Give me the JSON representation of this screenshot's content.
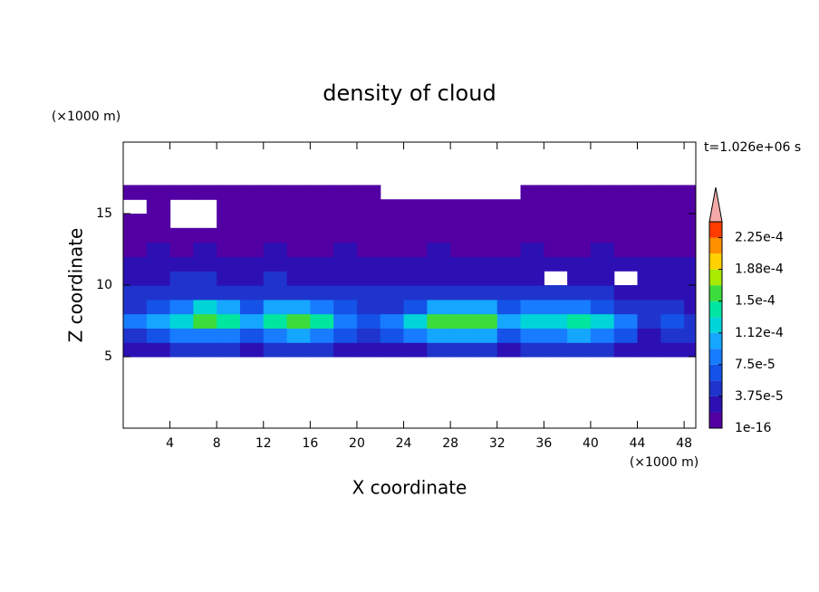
{
  "chart_data": {
    "type": "contour",
    "title": "density of cloud",
    "x_label": "X coordinate",
    "y_label": "Z coordinate",
    "x_unit": "(×1000 m)",
    "y_unit": "(×1000 m)",
    "annotation": "t=1.026e+06 s",
    "xlim": [
      0,
      49
    ],
    "ylim": [
      0,
      20
    ],
    "xticks": [
      4,
      8,
      12,
      16,
      20,
      24,
      28,
      32,
      36,
      40,
      44,
      48
    ],
    "yticks": [
      5,
      10,
      15
    ],
    "x": [
      1,
      3,
      5,
      7,
      9,
      11,
      13,
      15,
      17,
      19,
      21,
      23,
      25,
      27,
      29,
      31,
      33,
      35,
      37,
      39,
      41,
      43,
      45,
      47,
      49
    ],
    "y": [
      5.5,
      6.5,
      7.5,
      8.5,
      9.5,
      10.5,
      11.5,
      12.5,
      13.5,
      14.5,
      15.5,
      16.5
    ],
    "values": [
      [
        2e-05,
        3e-05,
        4e-05,
        4e-05,
        4e-05,
        3e-05,
        4e-05,
        4e-05,
        4e-05,
        3e-05,
        2e-05,
        3e-05,
        3e-05,
        4e-05,
        4e-05,
        4e-05,
        3e-05,
        4e-05,
        4e-05,
        4e-05,
        4e-05,
        3e-05,
        2e-05,
        3e-05,
        2e-05
      ],
      [
        5e-05,
        6e-05,
        8e-05,
        9e-05,
        9e-05,
        7e-05,
        9e-05,
        0.0001,
        9e-05,
        6e-05,
        5e-05,
        6e-05,
        8e-05,
        0.0001,
        0.0001,
        0.0001,
        7e-05,
        9e-05,
        9e-05,
        0.0001,
        9e-05,
        6e-05,
        3e-05,
        5e-05,
        4e-05
      ],
      [
        8e-05,
        0.0001,
        0.00013,
        0.00015,
        0.00014,
        0.0001,
        0.00014,
        0.00015,
        0.00014,
        9e-05,
        6e-05,
        8e-05,
        0.00012,
        0.00015,
        0.00016,
        0.00015,
        0.0001,
        0.00013,
        0.00013,
        0.00014,
        0.00012,
        8e-05,
        5e-05,
        6e-05,
        4e-05
      ],
      [
        5e-05,
        6e-05,
        9e-05,
        0.00012,
        0.0001,
        6e-05,
        0.0001,
        0.00011,
        9e-05,
        6e-05,
        5e-05,
        5e-05,
        7e-05,
        0.0001,
        0.00011,
        0.0001,
        6e-05,
        8e-05,
        8e-05,
        8e-05,
        6e-05,
        5e-05,
        4e-05,
        4e-05,
        3e-05
      ],
      [
        4e-05,
        4e-05,
        5e-05,
        5e-05,
        5e-05,
        4e-05,
        4e-05,
        5e-05,
        5e-05,
        4e-05,
        4e-05,
        4e-05,
        4e-05,
        4e-05,
        5e-05,
        4e-05,
        4e-05,
        4e-05,
        4e-05,
        4e-05,
        4e-05,
        3e-05,
        3e-05,
        3e-05,
        3e-05
      ],
      [
        3e-05,
        3e-05,
        4e-05,
        4e-05,
        3e-05,
        3e-05,
        4e-05,
        3e-05,
        3e-05,
        3e-05,
        3e-05,
        3e-05,
        3e-05,
        3e-05,
        3e-05,
        3e-05,
        3e-05,
        3e-05,
        0,
        2e-05,
        3e-05,
        0,
        3e-05,
        3e-05,
        3e-05
      ],
      [
        2e-05,
        2e-05,
        2e-05,
        2e-05,
        2e-05,
        2e-05,
        2e-05,
        2e-05,
        2e-05,
        2e-05,
        2e-05,
        2e-05,
        2e-05,
        2e-05,
        2e-05,
        2e-05,
        2e-05,
        2e-05,
        2e-05,
        2e-05,
        2e-05,
        2e-05,
        2e-05,
        2e-05,
        2e-05
      ],
      [
        1.5e-05,
        2e-05,
        1.5e-05,
        2e-05,
        1.5e-05,
        1.5e-05,
        2e-05,
        1.5e-05,
        1.5e-05,
        2e-05,
        1.5e-05,
        1.5e-05,
        1.5e-05,
        2e-05,
        1.5e-05,
        1.5e-05,
        1.5e-05,
        2e-05,
        1.5e-05,
        1.5e-05,
        2e-05,
        1.5e-05,
        1.5e-05,
        1.5e-05,
        1.5e-05
      ],
      [
        1e-05,
        1e-05,
        1e-05,
        1e-05,
        1e-05,
        1e-05,
        1e-05,
        1e-05,
        1e-05,
        1e-05,
        1e-05,
        1e-05,
        1e-05,
        1e-05,
        1e-05,
        1e-05,
        1e-05,
        1e-05,
        1e-05,
        1e-05,
        1e-05,
        1e-05,
        1e-05,
        1e-05,
        1e-05
      ],
      [
        1e-05,
        1e-05,
        0,
        0,
        1e-05,
        1e-05,
        1e-05,
        1e-05,
        1e-05,
        1e-05,
        1e-05,
        1e-05,
        1e-05,
        1e-05,
        1e-05,
        1e-05,
        1e-05,
        1e-05,
        1e-05,
        1e-05,
        1e-05,
        1e-05,
        1e-05,
        1e-05,
        1e-05
      ],
      [
        0,
        1e-05,
        0,
        0,
        1e-05,
        1e-05,
        1e-05,
        1e-05,
        1e-05,
        1e-05,
        1e-05,
        1e-05,
        1e-05,
        1e-05,
        1e-05,
        1e-05,
        1e-05,
        1e-05,
        1e-05,
        1e-05,
        1e-05,
        1e-05,
        1e-05,
        1e-05,
        1e-05
      ],
      [
        5e-06,
        5e-06,
        5e-06,
        5e-06,
        5e-06,
        5e-06,
        5e-06,
        5e-06,
        5e-06,
        5e-06,
        5e-06,
        0,
        0,
        0,
        0,
        0,
        0,
        5e-06,
        5e-06,
        5e-06,
        5e-06,
        5e-06,
        5e-06,
        5e-06,
        5e-06
      ]
    ],
    "levels": [
      1e-16,
      1.875e-05,
      3.75e-05,
      5.625e-05,
      7.5e-05,
      9.375e-05,
      0.0001125,
      0.00013125,
      0.00015,
      0.00016875,
      0.0001875,
      0.00020625,
      0.000225,
      0.00024375
    ],
    "colors": [
      "#5200a3",
      "#2d10b4",
      "#1f34cc",
      "#1553e8",
      "#177cff",
      "#15a6ff",
      "#00d4d8",
      "#00e6a0",
      "#3cdc3c",
      "#a8ea00",
      "#ffd200",
      "#ff9000",
      "#ff3c00"
    ],
    "extend_color": "#f4a8a8",
    "colorbar_ticks": [
      {
        "value": 1e-16,
        "label": "1e-16"
      },
      {
        "value": 3.75e-05,
        "label": "3.75e-5"
      },
      {
        "value": 7.5e-05,
        "label": "7.5e-5"
      },
      {
        "value": 0.0001125,
        "label": "1.12e-4"
      },
      {
        "value": 0.00015,
        "label": "1.5e-4"
      },
      {
        "value": 0.0001875,
        "label": "1.88e-4"
      },
      {
        "value": 0.000225,
        "label": "2.25e-4"
      }
    ]
  }
}
